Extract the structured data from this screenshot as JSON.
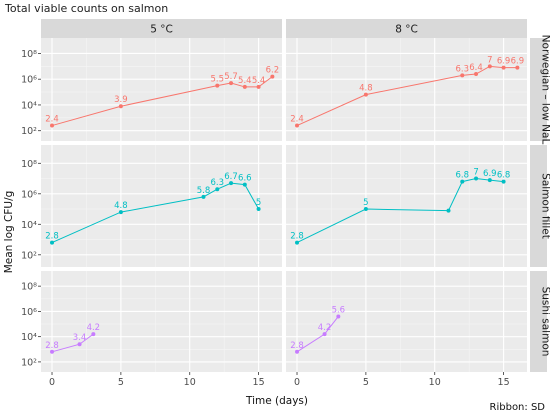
{
  "chart_data": {
    "type": "line",
    "title": "Total viable counts on salmon",
    "xlabel": "Time (days)",
    "ylabel": "Mean log CFU/g",
    "caption": "Ribbon: SD",
    "xlim": [
      -0.8,
      16.7
    ],
    "ylim_log10": [
      1.2,
      9.2
    ],
    "x_ticks": [
      0,
      5,
      10,
      15
    ],
    "y_ticks": [
      {
        "value": 2,
        "label": "10²"
      },
      {
        "value": 4,
        "label": "10⁴"
      },
      {
        "value": 6,
        "label": "10⁶"
      },
      {
        "value": 8,
        "label": "10⁸"
      }
    ],
    "facet_columns": [
      "5 °C",
      "8 °C"
    ],
    "facet_rows": [
      "Norwegian – low NaL",
      "Salmon fillet",
      "Sushi salmon"
    ],
    "grid": true,
    "legend": "none",
    "series": [
      {
        "row": 0,
        "col": 0,
        "color": "#F8766D",
        "points": [
          {
            "x": 0,
            "y": 2.4,
            "label": "2.4"
          },
          {
            "x": 5,
            "y": 3.9,
            "label": "3.9"
          },
          {
            "x": 12,
            "y": 5.5,
            "label": "5.5"
          },
          {
            "x": 13,
            "y": 5.7,
            "label": "5.7"
          },
          {
            "x": 14,
            "y": 5.4,
            "label": "5.4"
          },
          {
            "x": 15,
            "y": 5.4,
            "label": "5.4"
          },
          {
            "x": 16,
            "y": 6.2,
            "label": "6.2"
          }
        ]
      },
      {
        "row": 0,
        "col": 1,
        "color": "#F8766D",
        "points": [
          {
            "x": 0,
            "y": 2.4,
            "label": "2.4"
          },
          {
            "x": 5,
            "y": 4.8,
            "label": "4.8"
          },
          {
            "x": 12,
            "y": 6.3,
            "label": "6.3"
          },
          {
            "x": 13,
            "y": 6.4,
            "label": "6.4"
          },
          {
            "x": 14,
            "y": 7.0,
            "label": "7"
          },
          {
            "x": 15,
            "y": 6.9,
            "label": "6.9"
          },
          {
            "x": 16,
            "y": 6.9,
            "label": "6.9"
          }
        ]
      },
      {
        "row": 1,
        "col": 0,
        "color": "#00BFC4",
        "points": [
          {
            "x": 0,
            "y": 2.8,
            "label": "2.8"
          },
          {
            "x": 5,
            "y": 4.8,
            "label": "4.8"
          },
          {
            "x": 11,
            "y": 5.8,
            "label": "5.8"
          },
          {
            "x": 12,
            "y": 6.3,
            "label": "6.3"
          },
          {
            "x": 13,
            "y": 6.7,
            "label": "6.7"
          },
          {
            "x": 14,
            "y": 6.6,
            "label": "6.6"
          },
          {
            "x": 15,
            "y": 5.0,
            "label": "5"
          }
        ]
      },
      {
        "row": 1,
        "col": 1,
        "color": "#00BFC4",
        "points": [
          {
            "x": 0,
            "y": 2.8,
            "label": "2.8"
          },
          {
            "x": 5,
            "y": 5.0,
            "label": "5"
          },
          {
            "x": 11,
            "y": 4.9,
            "label": ""
          },
          {
            "x": 12,
            "y": 6.8,
            "label": "6.8"
          },
          {
            "x": 13,
            "y": 7.0,
            "label": "7"
          },
          {
            "x": 14,
            "y": 6.9,
            "label": "6.9"
          },
          {
            "x": 15,
            "y": 6.8,
            "label": "6.8"
          }
        ]
      },
      {
        "row": 2,
        "col": 0,
        "color": "#C77CFF",
        "points": [
          {
            "x": 0,
            "y": 2.8,
            "label": "2.8"
          },
          {
            "x": 2,
            "y": 3.4,
            "label": "3.4"
          },
          {
            "x": 3,
            "y": 4.2,
            "label": "4.2"
          }
        ]
      },
      {
        "row": 2,
        "col": 1,
        "color": "#C77CFF",
        "points": [
          {
            "x": 0,
            "y": 2.8,
            "label": "2.8"
          },
          {
            "x": 2,
            "y": 4.2,
            "label": "4.2"
          },
          {
            "x": 3,
            "y": 5.6,
            "label": "5.6"
          }
        ]
      }
    ]
  }
}
